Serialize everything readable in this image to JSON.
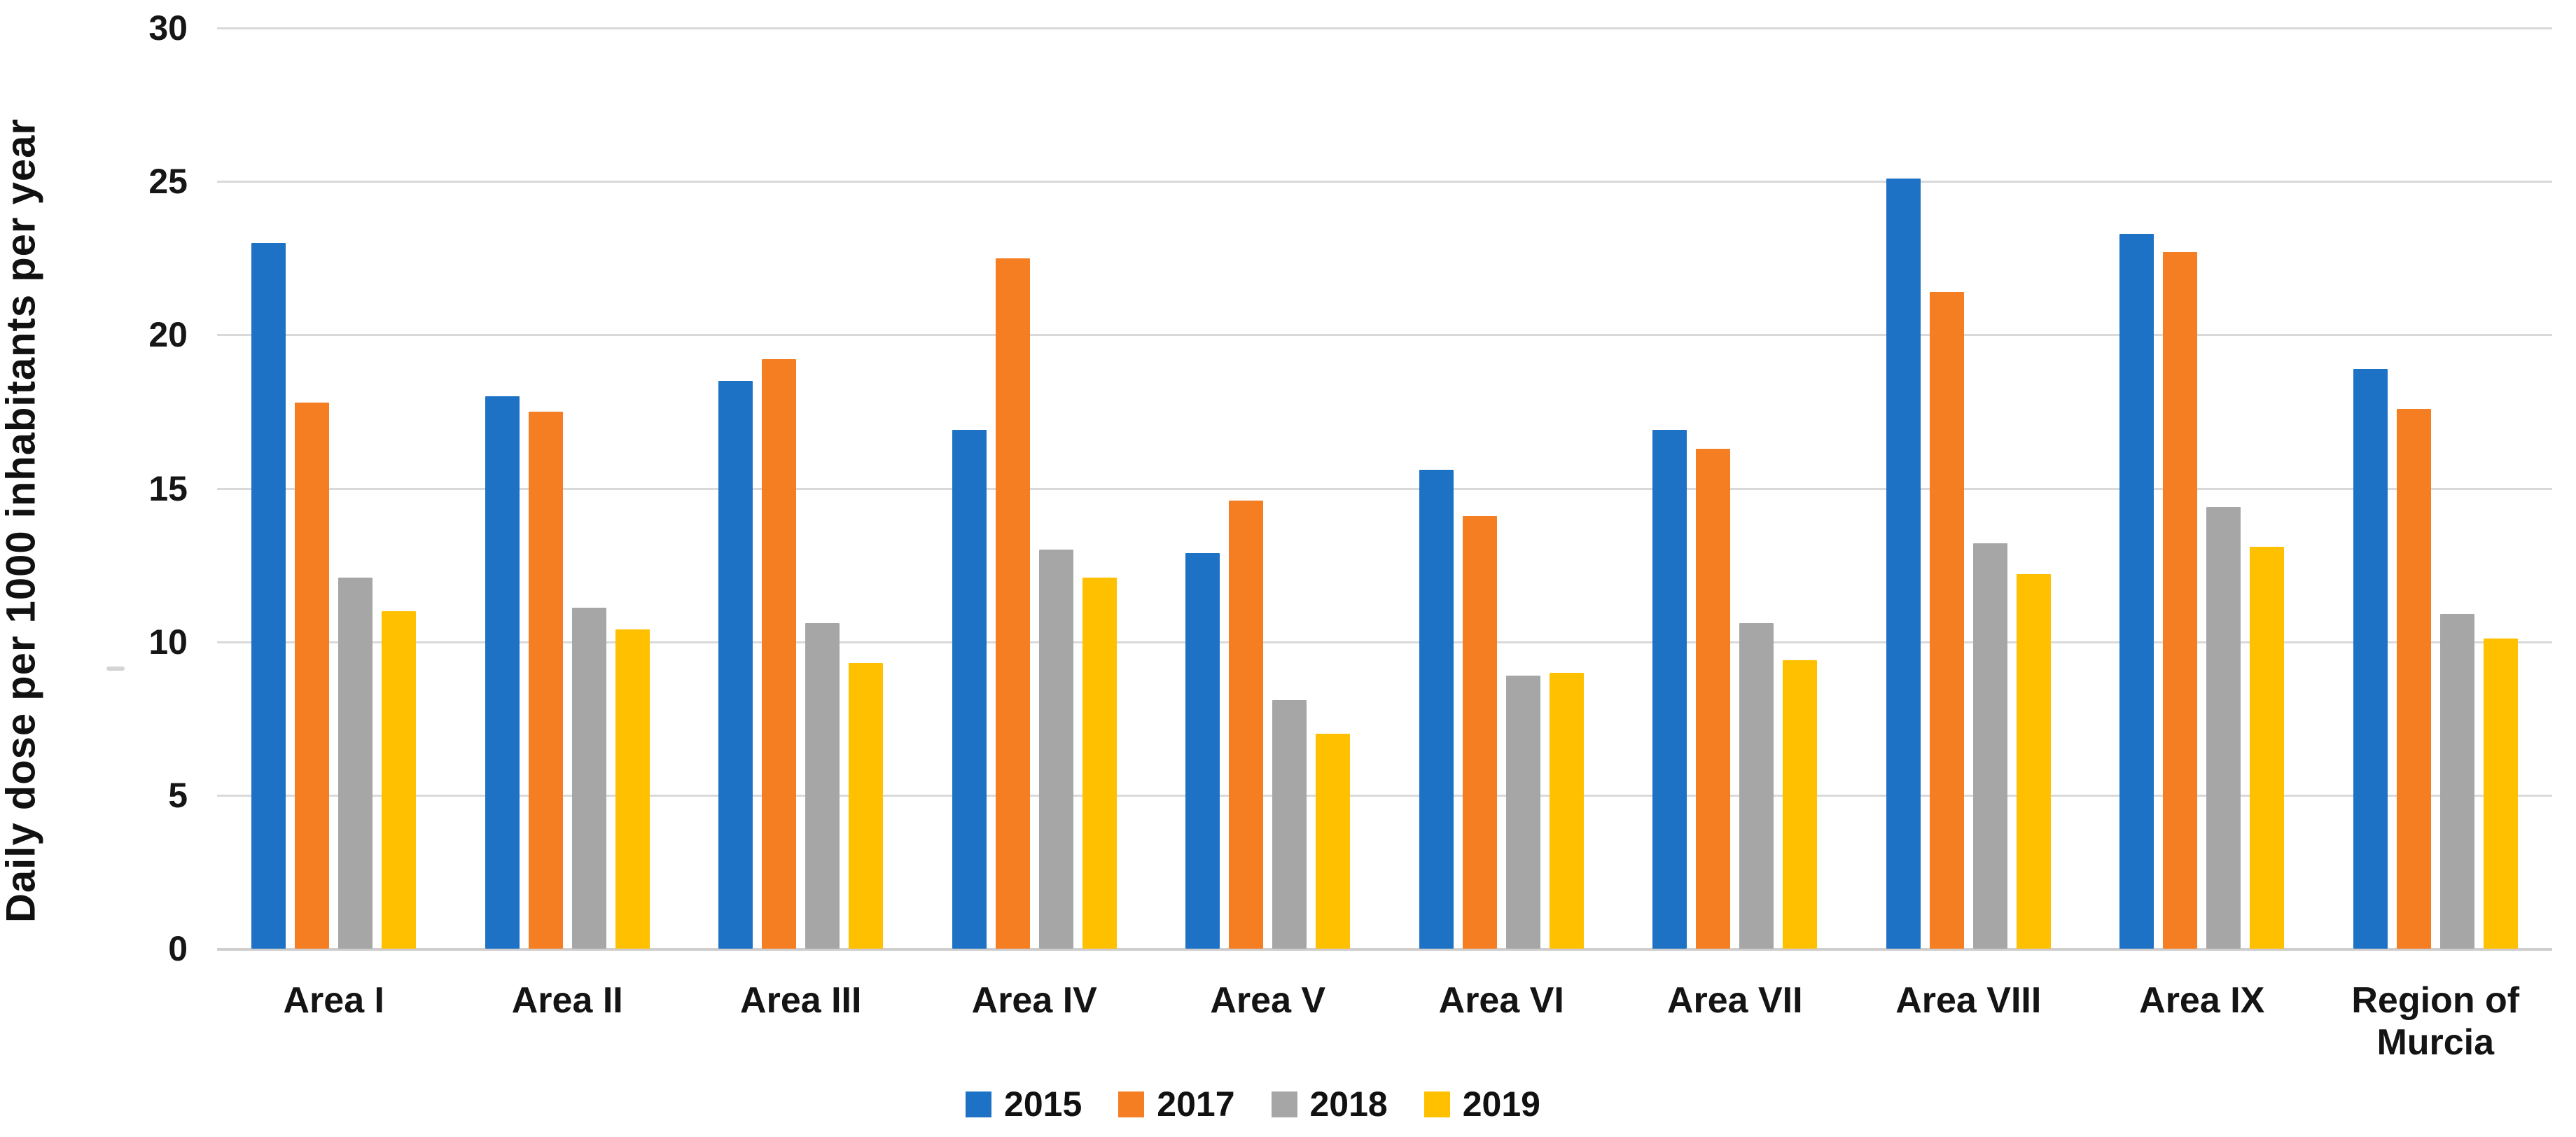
{
  "chart_data": {
    "type": "bar",
    "title": "",
    "ylabel": "Daily dose per 1000 inhabitants per year",
    "xlabel": "",
    "ylim": [
      0,
      30
    ],
    "y_ticks": [
      0,
      5,
      10,
      15,
      20,
      25,
      30
    ],
    "grid": "horizontal",
    "legend_position": "bottom",
    "categories": [
      "Area I",
      "Area II",
      "Area III",
      "Area IV",
      "Area V",
      "Area VI",
      "Area VII",
      "Area VIII",
      "Area IX",
      "Region of Murcia"
    ],
    "series": [
      {
        "name": "2015",
        "color": "#1e72c5",
        "values": [
          23.0,
          18.0,
          18.5,
          16.9,
          12.9,
          15.6,
          16.9,
          25.1,
          23.3,
          18.9
        ]
      },
      {
        "name": "2017",
        "color": "#f57d22",
        "values": [
          17.8,
          17.5,
          19.2,
          22.5,
          14.6,
          14.1,
          16.3,
          21.4,
          22.7,
          17.6
        ]
      },
      {
        "name": "2018",
        "color": "#a6a6a6",
        "values": [
          12.1,
          11.1,
          10.6,
          13.0,
          8.1,
          8.9,
          10.6,
          13.2,
          14.4,
          10.9
        ]
      },
      {
        "name": "2019",
        "color": "#ffc000",
        "values": [
          11.0,
          10.4,
          9.3,
          12.1,
          7.0,
          9.0,
          9.4,
          12.2,
          13.1,
          10.1
        ]
      }
    ]
  },
  "colors": {
    "gridline": "#d9d9d9",
    "baseline": "#cfcdcd",
    "text": "#141414"
  }
}
